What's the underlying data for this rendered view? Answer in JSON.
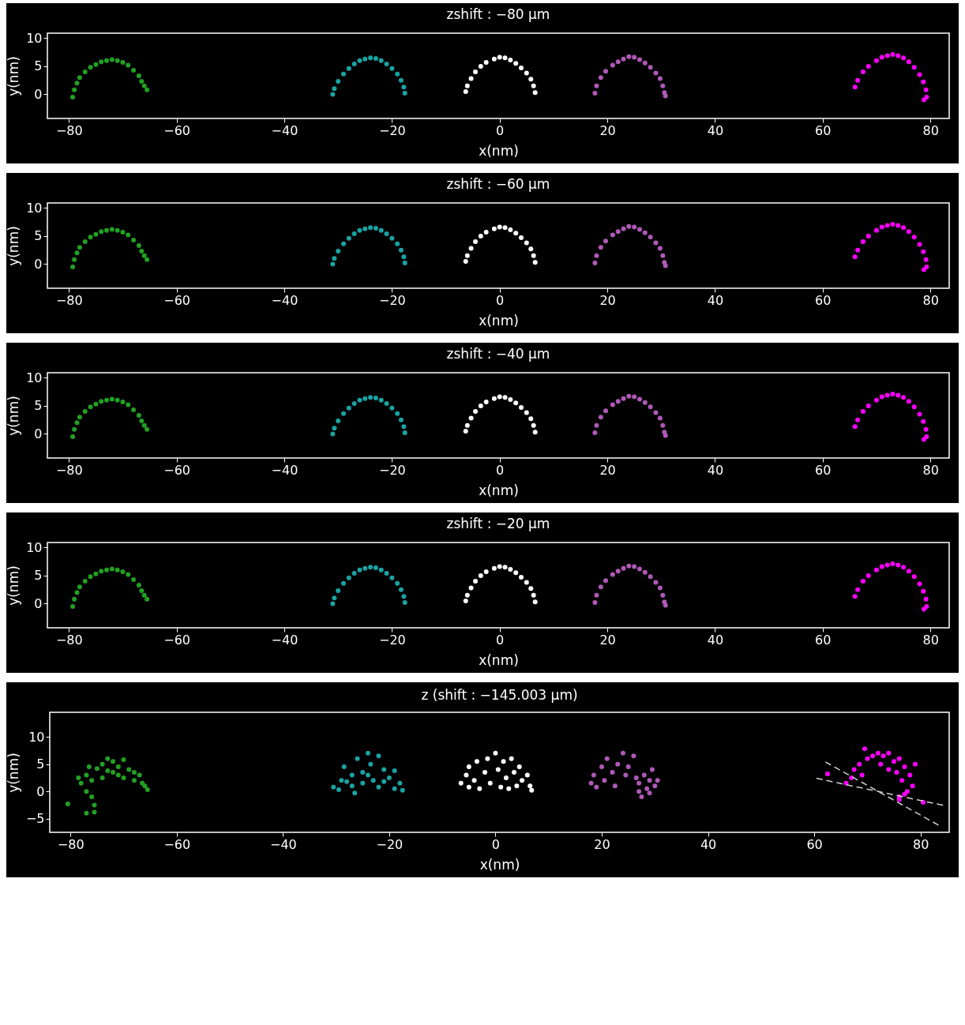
{
  "chart_data": [
    {
      "type": "scatter",
      "title": "zshift : −80 μm",
      "xlabel": "x(nm)",
      "ylabel": "y(nm)",
      "xlim": [
        -84,
        83.5
      ],
      "ylim": [
        -4.3,
        10.9
      ],
      "xticks": [
        -80,
        -60,
        -40,
        -20,
        0,
        20,
        40,
        60,
        80
      ],
      "yticks": [
        0,
        5,
        10
      ],
      "grid": false,
      "marker": "circle",
      "series": [
        {
          "color": "#22a022",
          "x": [
            -79.3,
            -79,
            -78.5,
            -78,
            -77,
            -76,
            -75,
            -74,
            -73,
            -72,
            -71,
            -70,
            -69,
            -68,
            -67,
            -66.5,
            -66,
            -65.5
          ],
          "values": [
            -0.5,
            0.8,
            2,
            3,
            4,
            4.8,
            5.3,
            5.8,
            6,
            6.2,
            6,
            5.7,
            5.2,
            4.3,
            3.3,
            2.3,
            1.5,
            0.8
          ]
        },
        {
          "color": "#1aa3a3",
          "x": [
            -31,
            -30.7,
            -30,
            -29,
            -28,
            -27,
            -26,
            -25,
            -24,
            -23,
            -22,
            -21,
            -20,
            -19,
            -18.3,
            -17.8,
            -17.6
          ],
          "values": [
            0,
            1,
            2.3,
            3.6,
            4.6,
            5.4,
            6,
            6.3,
            6.5,
            6.4,
            6,
            5.4,
            4.6,
            3.6,
            2.5,
            1.3,
            0.2
          ]
        },
        {
          "color": "#ffffff",
          "x": [
            -6.3,
            -6,
            -5.3,
            -4.5,
            -3.5,
            -2.5,
            -1,
            0,
            1,
            2,
            3,
            4,
            5,
            5.8,
            6.3,
            6.6
          ],
          "values": [
            0.5,
            1.5,
            2.8,
            4,
            5,
            5.7,
            6.3,
            6.6,
            6.5,
            6.1,
            5.5,
            4.7,
            3.8,
            2.7,
            1.5,
            0.3
          ]
        },
        {
          "color": "#b058b8",
          "x": [
            17.7,
            18,
            18.8,
            19.7,
            21,
            22,
            23,
            24,
            25,
            26,
            27,
            28,
            29,
            29.8,
            30.3,
            30.6,
            30.8
          ],
          "values": [
            0.2,
            1.5,
            3,
            4.1,
            5.2,
            5.8,
            6.3,
            6.7,
            6.6,
            6.2,
            5.6,
            4.8,
            3.8,
            2.8,
            1.5,
            0.3,
            -0.3
          ]
        },
        {
          "color": "#ff00ff",
          "x": [
            66,
            66.5,
            67.5,
            68.5,
            70,
            71,
            72,
            73,
            74,
            75,
            76,
            77,
            78,
            78.7,
            79.2,
            79.3,
            78.8
          ],
          "values": [
            1.3,
            2.5,
            4,
            5,
            6,
            6.6,
            6.9,
            7.1,
            6.9,
            6.5,
            5.8,
            4.8,
            3.5,
            2.2,
            0.8,
            -0.5,
            -1
          ]
        }
      ]
    },
    {
      "type": "scatter",
      "title": "zshift : −60 μm",
      "xlabel": "x(nm)",
      "ylabel": "y(nm)",
      "xlim": [
        -84,
        83.5
      ],
      "ylim": [
        -4.3,
        10.9
      ],
      "xticks": [
        -80,
        -60,
        -40,
        -20,
        0,
        20,
        40,
        60,
        80
      ],
      "yticks": [
        0,
        5,
        10
      ],
      "grid": false,
      "marker": "circle",
      "series": [
        {
          "color": "#22a022",
          "x": [
            -79.3,
            -79,
            -78.5,
            -78,
            -77,
            -76,
            -75,
            -74,
            -73,
            -72,
            -71,
            -70,
            -69,
            -68,
            -67,
            -66.5,
            -66,
            -65.5
          ],
          "values": [
            -0.5,
            0.8,
            2,
            3,
            4,
            4.8,
            5.3,
            5.8,
            6,
            6.2,
            6,
            5.7,
            5.2,
            4.3,
            3.3,
            2.3,
            1.5,
            0.8
          ]
        },
        {
          "color": "#1aa3a3",
          "x": [
            -31,
            -30.7,
            -30,
            -29,
            -28,
            -27,
            -26,
            -25,
            -24,
            -23,
            -22,
            -21,
            -20,
            -19,
            -18.3,
            -17.8,
            -17.6
          ],
          "values": [
            0,
            1,
            2.3,
            3.6,
            4.6,
            5.4,
            6,
            6.3,
            6.5,
            6.4,
            6,
            5.4,
            4.6,
            3.6,
            2.5,
            1.3,
            0.2
          ]
        },
        {
          "color": "#ffffff",
          "x": [
            -6.3,
            -6,
            -5.3,
            -4.5,
            -3.5,
            -2.5,
            -1,
            0,
            1,
            2,
            3,
            4,
            5,
            5.8,
            6.3,
            6.6
          ],
          "values": [
            0.5,
            1.5,
            2.8,
            4,
            5,
            5.7,
            6.3,
            6.6,
            6.5,
            6.1,
            5.5,
            4.7,
            3.8,
            2.7,
            1.5,
            0.3
          ]
        },
        {
          "color": "#b058b8",
          "x": [
            17.7,
            18,
            18.8,
            19.7,
            21,
            22,
            23,
            24,
            25,
            26,
            27,
            28,
            29,
            29.8,
            30.3,
            30.6,
            30.8
          ],
          "values": [
            0.2,
            1.5,
            3,
            4.1,
            5.2,
            5.8,
            6.3,
            6.7,
            6.6,
            6.2,
            5.6,
            4.8,
            3.8,
            2.8,
            1.5,
            0.3,
            -0.3
          ]
        },
        {
          "color": "#ff00ff",
          "x": [
            66,
            66.5,
            67.5,
            68.5,
            70,
            71,
            72,
            73,
            74,
            75,
            76,
            77,
            78,
            78.7,
            79.2,
            79.3,
            78.8
          ],
          "values": [
            1.3,
            2.5,
            4,
            5,
            6,
            6.6,
            6.9,
            7.1,
            6.9,
            6.5,
            5.8,
            4.8,
            3.5,
            2.2,
            0.8,
            -0.5,
            -1
          ]
        }
      ]
    },
    {
      "type": "scatter",
      "title": "zshift : −40 μm",
      "xlabel": "x(nm)",
      "ylabel": "y(nm)",
      "xlim": [
        -84,
        83.5
      ],
      "ylim": [
        -4.3,
        10.9
      ],
      "xticks": [
        -80,
        -60,
        -40,
        -20,
        0,
        20,
        40,
        60,
        80
      ],
      "yticks": [
        0,
        5,
        10
      ],
      "grid": false,
      "marker": "circle",
      "series": [
        {
          "color": "#22a022",
          "x": [
            -79.3,
            -79,
            -78.5,
            -78,
            -77,
            -76,
            -75,
            -74,
            -73,
            -72,
            -71,
            -70,
            -69,
            -68,
            -67,
            -66.5,
            -66,
            -65.5
          ],
          "values": [
            -0.5,
            0.8,
            2,
            3,
            4,
            4.8,
            5.3,
            5.8,
            6,
            6.2,
            6,
            5.7,
            5.2,
            4.3,
            3.3,
            2.3,
            1.5,
            0.8
          ]
        },
        {
          "color": "#1aa3a3",
          "x": [
            -31,
            -30.7,
            -30,
            -29,
            -28,
            -27,
            -26,
            -25,
            -24,
            -23,
            -22,
            -21,
            -20,
            -19,
            -18.3,
            -17.8,
            -17.6
          ],
          "values": [
            0,
            1,
            2.3,
            3.6,
            4.6,
            5.4,
            6,
            6.3,
            6.5,
            6.4,
            6,
            5.4,
            4.6,
            3.6,
            2.5,
            1.3,
            0.2
          ]
        },
        {
          "color": "#ffffff",
          "x": [
            -6.3,
            -6,
            -5.3,
            -4.5,
            -3.5,
            -2.5,
            -1,
            0,
            1,
            2,
            3,
            4,
            5,
            5.8,
            6.3,
            6.6
          ],
          "values": [
            0.5,
            1.5,
            2.8,
            4,
            5,
            5.7,
            6.3,
            6.6,
            6.5,
            6.1,
            5.5,
            4.7,
            3.8,
            2.7,
            1.5,
            0.3
          ]
        },
        {
          "color": "#b058b8",
          "x": [
            17.7,
            18,
            18.8,
            19.7,
            21,
            22,
            23,
            24,
            25,
            26,
            27,
            28,
            29,
            29.8,
            30.3,
            30.6,
            30.8
          ],
          "values": [
            0.2,
            1.5,
            3,
            4.1,
            5.2,
            5.8,
            6.3,
            6.7,
            6.6,
            6.2,
            5.6,
            4.8,
            3.8,
            2.8,
            1.5,
            0.3,
            -0.3
          ]
        },
        {
          "color": "#ff00ff",
          "x": [
            66,
            66.5,
            67.5,
            68.5,
            70,
            71,
            72,
            73,
            74,
            75,
            76,
            77,
            78,
            78.7,
            79.2,
            79.3,
            78.8
          ],
          "values": [
            1.3,
            2.5,
            4,
            5,
            6,
            6.6,
            6.9,
            7.1,
            6.9,
            6.5,
            5.8,
            4.8,
            3.5,
            2.2,
            0.8,
            -0.5,
            -1
          ]
        }
      ]
    },
    {
      "type": "scatter",
      "title": "zshift : −20 μm",
      "xlabel": "x(nm)",
      "ylabel": "y(nm)",
      "xlim": [
        -84,
        83.5
      ],
      "ylim": [
        -4.3,
        10.9
      ],
      "xticks": [
        -80,
        -60,
        -40,
        -20,
        0,
        20,
        40,
        60,
        80
      ],
      "yticks": [
        0,
        5,
        10
      ],
      "grid": false,
      "marker": "circle",
      "series": [
        {
          "color": "#22a022",
          "x": [
            -79.3,
            -79,
            -78.5,
            -78,
            -77,
            -76,
            -75,
            -74,
            -73,
            -72,
            -71,
            -70,
            -69,
            -68,
            -67,
            -66.5,
            -66,
            -65.5
          ],
          "values": [
            -0.5,
            0.8,
            2,
            3,
            4,
            4.8,
            5.3,
            5.8,
            6,
            6.2,
            6,
            5.7,
            5.2,
            4.3,
            3.3,
            2.3,
            1.5,
            0.8
          ]
        },
        {
          "color": "#1aa3a3",
          "x": [
            -31,
            -30.7,
            -30,
            -29,
            -28,
            -27,
            -26,
            -25,
            -24,
            -23,
            -22,
            -21,
            -20,
            -19,
            -18.3,
            -17.8,
            -17.6
          ],
          "values": [
            0,
            1,
            2.3,
            3.6,
            4.6,
            5.4,
            6,
            6.3,
            6.5,
            6.4,
            6,
            5.4,
            4.6,
            3.6,
            2.5,
            1.3,
            0.2
          ]
        },
        {
          "color": "#ffffff",
          "x": [
            -6.3,
            -6,
            -5.3,
            -4.5,
            -3.5,
            -2.5,
            -1,
            0,
            1,
            2,
            3,
            4,
            5,
            5.8,
            6.3,
            6.6
          ],
          "values": [
            0.5,
            1.5,
            2.8,
            4,
            5,
            5.7,
            6.3,
            6.6,
            6.5,
            6.1,
            5.5,
            4.7,
            3.8,
            2.7,
            1.5,
            0.3
          ]
        },
        {
          "color": "#b058b8",
          "x": [
            17.7,
            18,
            18.8,
            19.7,
            21,
            22,
            23,
            24,
            25,
            26,
            27,
            28,
            29,
            29.8,
            30.3,
            30.6,
            30.8
          ],
          "values": [
            0.2,
            1.5,
            3,
            4.1,
            5.2,
            5.8,
            6.3,
            6.7,
            6.6,
            6.2,
            5.6,
            4.8,
            3.8,
            2.8,
            1.5,
            0.3,
            -0.3
          ]
        },
        {
          "color": "#ff00ff",
          "x": [
            66,
            66.5,
            67.5,
            68.5,
            70,
            71,
            72,
            73,
            74,
            75,
            76,
            77,
            78,
            78.7,
            79.2,
            79.3,
            78.8
          ],
          "values": [
            1.3,
            2.5,
            4,
            5,
            6,
            6.6,
            6.9,
            7.1,
            6.9,
            6.5,
            5.8,
            4.8,
            3.5,
            2.2,
            0.8,
            -0.5,
            -1
          ]
        }
      ]
    },
    {
      "type": "scatter",
      "title": "z (shift : −145.003 μm)",
      "xlabel": "x(nm)",
      "ylabel": "y(nm)",
      "xlim": [
        -83.9,
        85.4
      ],
      "ylim": [
        -7.5,
        14.5
      ],
      "xticks": [
        -80,
        -60,
        -40,
        -20,
        0,
        20,
        40,
        60,
        80
      ],
      "yticks": [
        -5,
        0,
        5,
        10
      ],
      "grid": false,
      "marker": "circle",
      "series": [
        {
          "color": "#22a022",
          "x": [
            -80.5,
            -77,
            -75.5,
            -75.5,
            -76,
            -77,
            -78,
            -78.5,
            -77,
            -76.5,
            -75,
            -74,
            -73,
            -72,
            -71,
            -70,
            -69,
            -68,
            -67,
            -66.5,
            -65.5,
            -66,
            -74,
            -72,
            -70,
            -76,
            -73,
            -68,
            -71
          ],
          "values": [
            -2.3,
            -4,
            -3.8,
            -2.5,
            -1,
            0,
            1.5,
            2.5,
            3,
            4.5,
            4.2,
            5,
            6,
            5.5,
            4.5,
            5.8,
            4,
            3.5,
            3,
            1.5,
            0.3,
            1,
            2.5,
            3.5,
            2.5,
            2,
            3.8,
            2,
            3
          ]
        },
        {
          "color": "#1aa3a3",
          "x": [
            -30.5,
            -29.5,
            -29,
            -28.5,
            -27,
            -26.5,
            -26,
            -25,
            -24,
            -23.5,
            -23,
            -22,
            -21,
            -20,
            -19,
            -18,
            -17.5,
            -19,
            -22,
            -25,
            -27,
            -28,
            -21,
            -24
          ],
          "values": [
            0.8,
            0.3,
            2,
            4.5,
            1,
            -0.3,
            6,
            3.5,
            7,
            5,
            2,
            6.5,
            4,
            2.5,
            3.8,
            1.5,
            0.2,
            0.5,
            0.8,
            1.5,
            3,
            1.8,
            1.8,
            3
          ]
        },
        {
          "color": "#ffffff",
          "x": [
            -6.5,
            -5.5,
            -5,
            -4,
            -3.5,
            -3,
            -2,
            -1.5,
            -1,
            0,
            0.5,
            1,
            1.5,
            2,
            3,
            3.5,
            4,
            4.5,
            5,
            6,
            6.5,
            6.8,
            -5,
            2.5
          ],
          "values": [
            1.5,
            3,
            4.5,
            2,
            5.5,
            0.5,
            3.5,
            6,
            1.5,
            7,
            4,
            0.8,
            5.5,
            2.5,
            6,
            3.5,
            1,
            4.5,
            2,
            3,
            1,
            0.2,
            0.8,
            0.5
          ]
        },
        {
          "color": "#b058b8",
          "x": [
            18,
            18.5,
            19,
            20,
            20.5,
            21,
            22,
            22.5,
            23,
            24,
            24.5,
            25,
            26,
            26.5,
            27,
            27.5,
            28,
            28.5,
            29,
            29.5,
            30,
            30.5,
            29,
            27
          ],
          "values": [
            1.5,
            3,
            0.8,
            4.5,
            2,
            6,
            3.5,
            1,
            5,
            7,
            3,
            4.5,
            6.5,
            2.5,
            1.5,
            -1,
            3,
            0.5,
            2,
            4,
            1,
            2,
            -0.3,
            0
          ]
        },
        {
          "color": "#ff00ff",
          "x": [
            62.5,
            66,
            67,
            67.5,
            68.5,
            69,
            69.5,
            70,
            71,
            72,
            72.5,
            73,
            74,
            75,
            75.5,
            76,
            76.5,
            77,
            77.5,
            78,
            78.5,
            79,
            76,
            77,
            80.5,
            74,
            76
          ],
          "values": [
            3.2,
            1.5,
            2.5,
            4,
            5,
            3,
            7.8,
            6,
            6.5,
            7,
            5,
            6.5,
            7,
            5.5,
            3.5,
            6,
            2,
            4.5,
            0,
            3,
            1,
            5,
            -1.5,
            -0.5,
            -2,
            4,
            -1
          ]
        },
        {
          "type": "line",
          "color": "#d0d0d0",
          "line_style": "dashed",
          "marker": "none",
          "x": [
            62.1,
            83.6
          ],
          "values": [
            5.4,
            -6.3
          ]
        },
        {
          "type": "line",
          "color": "#d0d0d0",
          "line_style": "dashed",
          "marker": "none",
          "x": [
            60.4,
            84.5
          ],
          "values": [
            2.4,
            -2.6
          ]
        }
      ]
    }
  ]
}
